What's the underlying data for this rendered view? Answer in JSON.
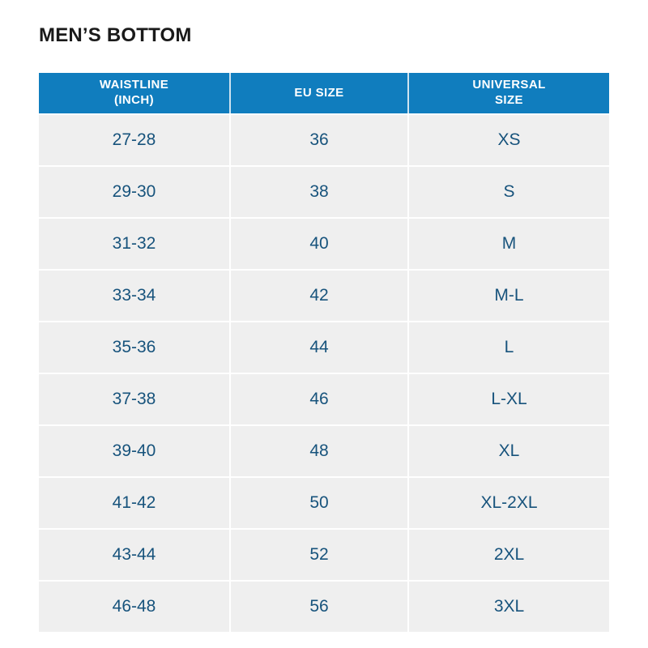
{
  "page": {
    "title": "MEN’S BOTTOM"
  },
  "colors": {
    "header_bg": "#107dbe",
    "header_text": "#ffffff",
    "row_bg": "#efefef",
    "cell_text": "#17537c",
    "title_text": "#1a1a1a",
    "divider": "#ffffff"
  },
  "table": {
    "columns": [
      "WAISTLINE\n(INCH)",
      "EU SIZE",
      "UNIVERSAL\nSIZE"
    ],
    "rows": [
      [
        "27-28",
        "36",
        "XS"
      ],
      [
        "29-30",
        "38",
        "S"
      ],
      [
        "31-32",
        "40",
        "M"
      ],
      [
        "33-34",
        "42",
        "M-L"
      ],
      [
        "35-36",
        "44",
        "L"
      ],
      [
        "37-38",
        "46",
        "L-XL"
      ],
      [
        "39-40",
        "48",
        "XL"
      ],
      [
        "41-42",
        "50",
        "XL-2XL"
      ],
      [
        "43-44",
        "52",
        "2XL"
      ],
      [
        "46-48",
        "56",
        "3XL"
      ]
    ]
  }
}
